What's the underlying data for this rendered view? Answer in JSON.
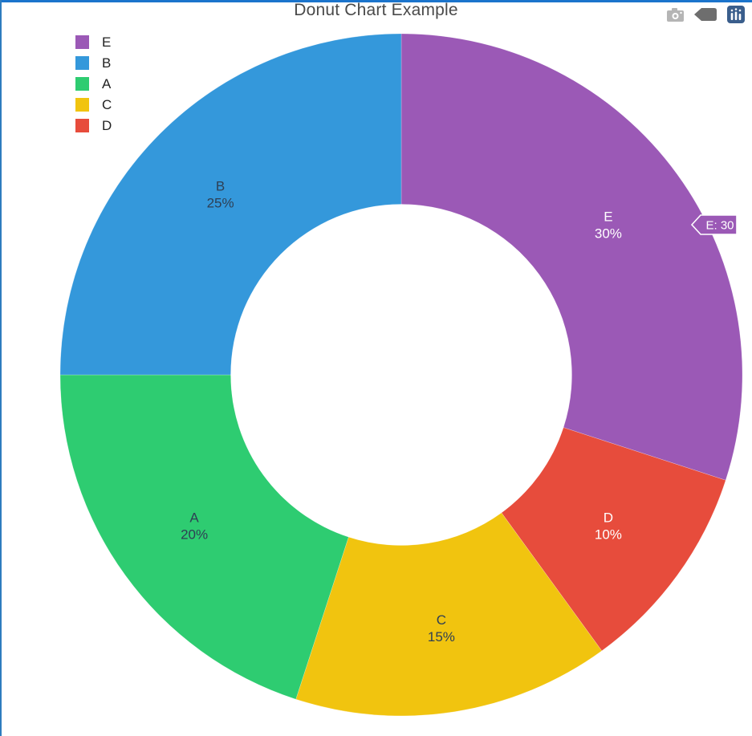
{
  "title": "Donut Chart Example",
  "chart_data": {
    "type": "pie",
    "subtype": "donut",
    "title": "Donut Chart Example",
    "hole": 0.5,
    "direction": "clockwise",
    "start_angle_deg": 0,
    "grid": false,
    "slices": [
      {
        "label": "E",
        "value": 30,
        "pct_label": "30%",
        "color": "#9b59b6",
        "label_color": "#ffffff"
      },
      {
        "label": "D",
        "value": 10,
        "pct_label": "10%",
        "color": "#e74c3c",
        "label_color": "#ffffff"
      },
      {
        "label": "C",
        "value": 15,
        "pct_label": "15%",
        "color": "#f1c40f",
        "label_color": "#2e3f54"
      },
      {
        "label": "A",
        "value": 20,
        "pct_label": "20%",
        "color": "#2ecc71",
        "label_color": "#2e3f54"
      },
      {
        "label": "B",
        "value": 25,
        "pct_label": "25%",
        "color": "#3498db",
        "label_color": "#2e3f54"
      }
    ],
    "legend": {
      "position": "top-left",
      "items": [
        {
          "label": "E",
          "color": "#9b59b6"
        },
        {
          "label": "B",
          "color": "#3498db"
        },
        {
          "label": "A",
          "color": "#2ecc71"
        },
        {
          "label": "C",
          "color": "#f1c40f"
        },
        {
          "label": "D",
          "color": "#e74c3c"
        }
      ]
    }
  },
  "tooltip": {
    "text": "E: 30",
    "bg_color": "#9b59b6",
    "border_color": "#ffffff",
    "text_color": "#ffffff"
  },
  "modebar": {
    "icons": [
      "camera-icon",
      "hover-closest-icon",
      "plotly-logo-icon"
    ],
    "camera_color": "#b5b5b5",
    "hover_icon_color": "#6e6e6e",
    "logo_color": "#3a5e8c"
  }
}
